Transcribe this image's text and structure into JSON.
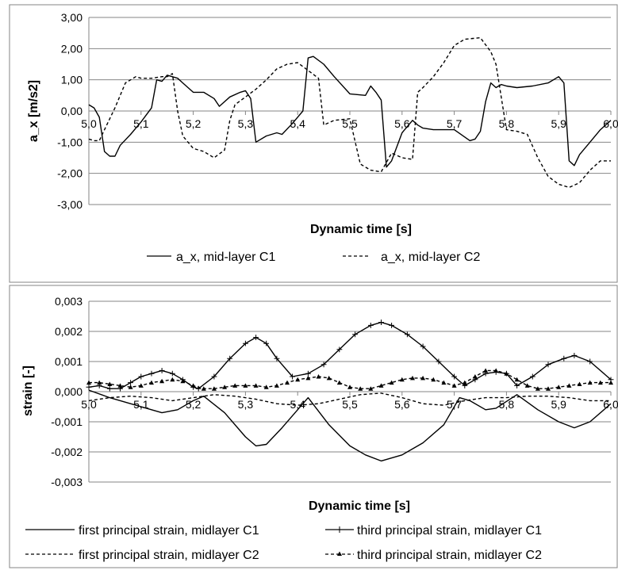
{
  "chart_data": [
    {
      "type": "line",
      "title": "",
      "xlabel": "Dynamic time [s]",
      "ylabel": "a_x [m/s2]",
      "xlim": [
        5.0,
        6.0
      ],
      "ylim": [
        -3,
        3
      ],
      "x_ticks": [
        "5,0",
        "5,1",
        "5,2",
        "5,3",
        "5,4",
        "5,5",
        "5,6",
        "5,7",
        "5,8",
        "5,9",
        "6,0"
      ],
      "y_ticks": [
        "3,00",
        "2,00",
        "1,00",
        "0,00",
        "-1,00",
        "-2,00",
        "-3,00"
      ],
      "grid": "horizontal",
      "legend_position": "bottom",
      "series": [
        {
          "name": "a_x, mid-layer C1",
          "style": "solid",
          "x": [
            5.0,
            5.01,
            5.02,
            5.03,
            5.04,
            5.05,
            5.06,
            5.08,
            5.1,
            5.12,
            5.13,
            5.14,
            5.15,
            5.17,
            5.18,
            5.2,
            5.22,
            5.24,
            5.25,
            5.27,
            5.29,
            5.3,
            5.31,
            5.32,
            5.34,
            5.36,
            5.37,
            5.39,
            5.41,
            5.42,
            5.43,
            5.45,
            5.47,
            5.5,
            5.53,
            5.54,
            5.55,
            5.56,
            5.57,
            5.58,
            5.6,
            5.62,
            5.63,
            5.64,
            5.66,
            5.7,
            5.73,
            5.74,
            5.75,
            5.76,
            5.77,
            5.78,
            5.79,
            5.8,
            5.82,
            5.85,
            5.88,
            5.9,
            5.91,
            5.92,
            5.93,
            5.94,
            5.96,
            5.98,
            6.0
          ],
          "y": [
            0.2,
            0.1,
            -0.2,
            -1.3,
            -1.45,
            -1.45,
            -1.1,
            -0.75,
            -0.35,
            0.1,
            1.0,
            0.95,
            1.15,
            1.05,
            0.9,
            0.6,
            0.6,
            0.4,
            0.15,
            0.45,
            0.6,
            0.65,
            0.4,
            -1.0,
            -0.8,
            -0.7,
            -0.75,
            -0.4,
            0.0,
            1.7,
            1.75,
            1.5,
            1.1,
            0.55,
            0.5,
            0.8,
            0.6,
            0.35,
            -1.8,
            -1.6,
            -0.7,
            -0.3,
            -0.45,
            -0.55,
            -0.6,
            -0.6,
            -0.95,
            -0.9,
            -0.65,
            0.3,
            0.9,
            0.75,
            0.85,
            0.8,
            0.75,
            0.8,
            0.9,
            1.1,
            0.9,
            -1.6,
            -1.75,
            -1.4,
            -1.0,
            -0.6,
            -0.3
          ]
        },
        {
          "name": "a_x, mid-layer C2",
          "style": "dashed",
          "x": [
            5.0,
            5.01,
            5.02,
            5.03,
            5.05,
            5.07,
            5.09,
            5.1,
            5.12,
            5.14,
            5.15,
            5.16,
            5.17,
            5.18,
            5.2,
            5.22,
            5.24,
            5.26,
            5.27,
            5.28,
            5.3,
            5.32,
            5.34,
            5.36,
            5.38,
            5.4,
            5.42,
            5.44,
            5.45,
            5.47,
            5.5,
            5.52,
            5.54,
            5.56,
            5.58,
            5.6,
            5.62,
            5.63,
            5.64,
            5.66,
            5.68,
            5.7,
            5.72,
            5.75,
            5.77,
            5.78,
            5.8,
            5.82,
            5.84,
            5.86,
            5.88,
            5.9,
            5.92,
            5.94,
            5.96,
            5.98,
            6.0
          ],
          "y": [
            -0.9,
            -0.95,
            -0.95,
            -0.6,
            0.1,
            0.9,
            1.1,
            1.05,
            1.05,
            1.1,
            1.1,
            1.2,
            0.0,
            -0.8,
            -1.2,
            -1.3,
            -1.5,
            -1.25,
            -0.3,
            0.2,
            0.45,
            0.7,
            1.0,
            1.35,
            1.5,
            1.55,
            1.3,
            1.05,
            -0.45,
            -0.3,
            -0.25,
            -1.7,
            -1.9,
            -1.95,
            -1.35,
            -1.5,
            -1.55,
            0.6,
            0.75,
            1.1,
            1.55,
            2.1,
            2.3,
            2.35,
            1.9,
            1.5,
            -0.6,
            -0.65,
            -0.75,
            -1.5,
            -2.1,
            -2.35,
            -2.45,
            -2.3,
            -1.9,
            -1.6,
            -1.6
          ]
        }
      ]
    },
    {
      "type": "line",
      "title": "",
      "xlabel": "Dynamic time [s]",
      "ylabel": "strain [-]",
      "xlim": [
        5.0,
        6.0
      ],
      "ylim": [
        -0.003,
        0.003
      ],
      "x_ticks": [
        "5,0",
        "5,1",
        "5,2",
        "5,3",
        "5,4",
        "5,5",
        "5,6",
        "5,7",
        "5,8",
        "5,9",
        "6,0"
      ],
      "y_ticks": [
        "0,003",
        "0,002",
        "0,001",
        "0,000",
        "-0,001",
        "-0,002",
        "-0,003"
      ],
      "grid": "horizontal",
      "legend_position": "bottom",
      "series": [
        {
          "name": "first principal strain, midlayer C1",
          "style": "solid",
          "x": [
            5.0,
            5.04,
            5.08,
            5.12,
            5.14,
            5.17,
            5.2,
            5.22,
            5.26,
            5.3,
            5.32,
            5.34,
            5.37,
            5.4,
            5.42,
            5.46,
            5.5,
            5.53,
            5.56,
            5.6,
            5.64,
            5.68,
            5.71,
            5.73,
            5.76,
            5.78,
            5.82,
            5.86,
            5.9,
            5.93,
            5.96,
            6.0
          ],
          "y": [
            5e-05,
            -0.0002,
            -0.0004,
            -0.0006,
            -0.0007,
            -0.0006,
            -0.0003,
            -0.00015,
            -0.0007,
            -0.0015,
            -0.0018,
            -0.00175,
            -0.0012,
            -0.0006,
            -0.0002,
            -0.0011,
            -0.0018,
            -0.0021,
            -0.0023,
            -0.0021,
            -0.0017,
            -0.0011,
            -0.0002,
            -0.0003,
            -0.0006,
            -0.00055,
            -0.0001,
            -0.0006,
            -0.001,
            -0.0012,
            -0.001,
            -0.0004
          ]
        },
        {
          "name": "third principal strain, midlayer C1",
          "style": "solid-cross",
          "x": [
            5.0,
            5.02,
            5.04,
            5.06,
            5.08,
            5.1,
            5.12,
            5.14,
            5.16,
            5.18,
            5.2,
            5.21,
            5.24,
            5.27,
            5.3,
            5.32,
            5.34,
            5.36,
            5.39,
            5.42,
            5.45,
            5.48,
            5.51,
            5.54,
            5.56,
            5.58,
            5.61,
            5.64,
            5.67,
            5.7,
            5.72,
            5.74,
            5.76,
            5.78,
            5.8,
            5.82,
            5.85,
            5.88,
            5.91,
            5.93,
            5.96,
            6.0
          ],
          "y": [
            0.00015,
            0.0002,
            0.0001,
            0.0001,
            0.0003,
            0.0005,
            0.0006,
            0.0007,
            0.0006,
            0.0004,
            0.00015,
            0.0001,
            0.0005,
            0.0011,
            0.0016,
            0.0018,
            0.0016,
            0.0011,
            0.0005,
            0.0006,
            0.0009,
            0.0014,
            0.0019,
            0.0022,
            0.0023,
            0.0022,
            0.0019,
            0.0015,
            0.001,
            0.0005,
            0.0002,
            0.0004,
            0.0006,
            0.00065,
            0.0006,
            0.0002,
            0.0005,
            0.0009,
            0.0011,
            0.0012,
            0.001,
            0.0004
          ]
        },
        {
          "name": "first principal strain, midlayer C2",
          "style": "dashed",
          "x": [
            5.0,
            5.04,
            5.08,
            5.12,
            5.16,
            5.2,
            5.24,
            5.28,
            5.32,
            5.36,
            5.4,
            5.44,
            5.48,
            5.52,
            5.56,
            5.6,
            5.64,
            5.68,
            5.72,
            5.76,
            5.8,
            5.84,
            5.88,
            5.92,
            5.96,
            6.0
          ],
          "y": [
            -0.0003,
            -0.0002,
            -0.00015,
            -0.0002,
            -0.0003,
            -0.0002,
            -0.0001,
            -0.00015,
            -0.00025,
            -0.0004,
            -0.00045,
            -0.0004,
            -0.00025,
            -0.0001,
            -5e-05,
            -0.0002,
            -0.0004,
            -0.00045,
            -0.0003,
            -0.0002,
            -0.0002,
            -0.00015,
            -0.00015,
            -0.0002,
            -0.0003,
            -0.0003
          ]
        },
        {
          "name": "third principal strain, midlayer C2",
          "style": "dashed-triangle",
          "x": [
            5.0,
            5.02,
            5.04,
            5.06,
            5.08,
            5.1,
            5.12,
            5.14,
            5.16,
            5.18,
            5.2,
            5.22,
            5.24,
            5.26,
            5.28,
            5.3,
            5.32,
            5.34,
            5.36,
            5.38,
            5.4,
            5.42,
            5.44,
            5.46,
            5.48,
            5.5,
            5.52,
            5.54,
            5.56,
            5.58,
            5.6,
            5.62,
            5.64,
            5.66,
            5.68,
            5.7,
            5.72,
            5.74,
            5.76,
            5.78,
            5.8,
            5.82,
            5.84,
            5.86,
            5.88,
            5.9,
            5.92,
            5.94,
            5.96,
            5.98,
            6.0
          ],
          "y": [
            0.0003,
            0.0003,
            0.00025,
            0.0002,
            0.00015,
            0.0002,
            0.0003,
            0.00035,
            0.0004,
            0.00035,
            0.0002,
            0.0001,
            0.0001,
            0.00015,
            0.0002,
            0.0002,
            0.0002,
            0.00015,
            0.0002,
            0.0003,
            0.0004,
            0.00045,
            0.0005,
            0.00045,
            0.0003,
            0.00015,
            0.0001,
            0.0001,
            0.0002,
            0.0003,
            0.0004,
            0.00045,
            0.00045,
            0.0004,
            0.0003,
            0.0002,
            0.0003,
            0.0005,
            0.0007,
            0.0007,
            0.0006,
            0.0004,
            0.0002,
            0.0001,
            0.0001,
            0.00015,
            0.0002,
            0.00025,
            0.0003,
            0.0003,
            0.0003
          ]
        }
      ]
    }
  ]
}
